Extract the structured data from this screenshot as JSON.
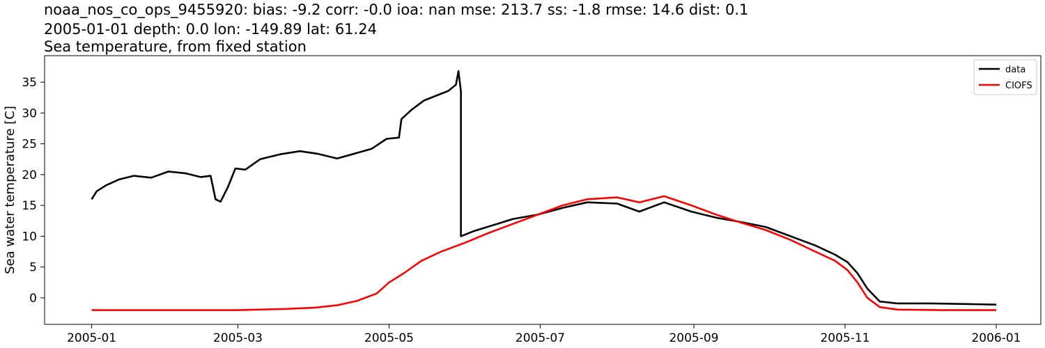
{
  "title_lines": [
    "noaa_nos_co_ops_9455920: bias: -9.2  corr: -0.0  ioa: nan  mse: 213.7  ss: -1.8  rmse: 14.6  dist: 0.1",
    "2005-01-01 depth: 0.0 lon: -149.89 lat: 61.24",
    "Sea temperature, from fixed station"
  ],
  "chart_data": {
    "type": "line",
    "title": "Sea temperature, from fixed station",
    "xlabel": "",
    "ylabel": "Sea water temperature [C]",
    "x_ticks": [
      "2005-01",
      "2005-03",
      "2005-05",
      "2005-07",
      "2005-09",
      "2005-11",
      "2006-01"
    ],
    "y_ticks": [
      0,
      5,
      10,
      15,
      20,
      25,
      30,
      35
    ],
    "xlim": [
      "2004-12-13",
      "2006-01-19"
    ],
    "ylim": [
      -4.3,
      39.3
    ],
    "grid": false,
    "legend_position": "top-right",
    "series": [
      {
        "name": "data",
        "color": "#000000",
        "points": [
          [
            "2005-01-01",
            16.0
          ],
          [
            "2005-01-03",
            17.3
          ],
          [
            "2005-01-07",
            18.3
          ],
          [
            "2005-01-12",
            19.2
          ],
          [
            "2005-01-18",
            19.8
          ],
          [
            "2005-01-25",
            19.5
          ],
          [
            "2005-02-01",
            20.5
          ],
          [
            "2005-02-08",
            20.2
          ],
          [
            "2005-02-14",
            19.6
          ],
          [
            "2005-02-18",
            19.8
          ],
          [
            "2005-02-20",
            16.0
          ],
          [
            "2005-02-22",
            15.6
          ],
          [
            "2005-02-25",
            18.0
          ],
          [
            "2005-02-28",
            21.0
          ],
          [
            "2005-03-04",
            20.8
          ],
          [
            "2005-03-10",
            22.5
          ],
          [
            "2005-03-18",
            23.3
          ],
          [
            "2005-03-26",
            23.8
          ],
          [
            "2005-04-02",
            23.4
          ],
          [
            "2005-04-10",
            22.6
          ],
          [
            "2005-04-17",
            23.4
          ],
          [
            "2005-04-24",
            24.2
          ],
          [
            "2005-04-30",
            25.8
          ],
          [
            "2005-05-05",
            26.0
          ],
          [
            "2005-05-06",
            29.0
          ],
          [
            "2005-05-10",
            30.5
          ],
          [
            "2005-05-15",
            32.0
          ],
          [
            "2005-05-20",
            32.8
          ],
          [
            "2005-05-25",
            33.6
          ],
          [
            "2005-05-28",
            34.6
          ],
          [
            "2005-05-29",
            36.8
          ],
          [
            "2005-05-30",
            33.5
          ],
          [
            "2005-05-30",
            10.0
          ],
          [
            "2005-06-04",
            10.8
          ],
          [
            "2005-06-12",
            11.8
          ],
          [
            "2005-06-20",
            12.8
          ],
          [
            "2005-06-30",
            13.5
          ],
          [
            "2005-07-10",
            14.6
          ],
          [
            "2005-07-20",
            15.5
          ],
          [
            "2005-08-01",
            15.3
          ],
          [
            "2005-08-10",
            14.0
          ],
          [
            "2005-08-20",
            15.5
          ],
          [
            "2005-08-31",
            14.0
          ],
          [
            "2005-09-10",
            13.0
          ],
          [
            "2005-09-20",
            12.3
          ],
          [
            "2005-09-30",
            11.5
          ],
          [
            "2005-10-10",
            10.0
          ],
          [
            "2005-10-20",
            8.5
          ],
          [
            "2005-10-28",
            7.0
          ],
          [
            "2005-11-02",
            5.8
          ],
          [
            "2005-11-06",
            4.0
          ],
          [
            "2005-11-10",
            1.5
          ],
          [
            "2005-11-15",
            -0.6
          ],
          [
            "2005-11-22",
            -0.9
          ],
          [
            "2005-12-05",
            -0.9
          ],
          [
            "2005-12-20",
            -1.0
          ],
          [
            "2006-01-01",
            -1.1
          ]
        ]
      },
      {
        "name": "CIOFS",
        "color": "#ff0000",
        "points": [
          [
            "2005-01-01",
            -2.0
          ],
          [
            "2005-02-01",
            -2.0
          ],
          [
            "2005-03-01",
            -2.0
          ],
          [
            "2005-03-20",
            -1.8
          ],
          [
            "2005-04-01",
            -1.6
          ],
          [
            "2005-04-10",
            -1.2
          ],
          [
            "2005-04-18",
            -0.5
          ],
          [
            "2005-04-26",
            0.7
          ],
          [
            "2005-05-01",
            2.5
          ],
          [
            "2005-05-07",
            4.0
          ],
          [
            "2005-05-14",
            6.0
          ],
          [
            "2005-05-22",
            7.5
          ],
          [
            "2005-06-01",
            9.0
          ],
          [
            "2005-06-10",
            10.5
          ],
          [
            "2005-06-20",
            12.0
          ],
          [
            "2005-06-30",
            13.5
          ],
          [
            "2005-07-10",
            15.0
          ],
          [
            "2005-07-20",
            16.0
          ],
          [
            "2005-08-01",
            16.3
          ],
          [
            "2005-08-10",
            15.5
          ],
          [
            "2005-08-20",
            16.5
          ],
          [
            "2005-08-31",
            15.0
          ],
          [
            "2005-09-10",
            13.5
          ],
          [
            "2005-09-20",
            12.2
          ],
          [
            "2005-09-30",
            11.0
          ],
          [
            "2005-10-10",
            9.4
          ],
          [
            "2005-10-20",
            7.5
          ],
          [
            "2005-10-28",
            6.0
          ],
          [
            "2005-11-02",
            4.5
          ],
          [
            "2005-11-06",
            2.5
          ],
          [
            "2005-11-10",
            0.0
          ],
          [
            "2005-11-15",
            -1.5
          ],
          [
            "2005-11-22",
            -1.9
          ],
          [
            "2005-12-10",
            -2.0
          ],
          [
            "2006-01-01",
            -2.0
          ]
        ]
      }
    ]
  }
}
